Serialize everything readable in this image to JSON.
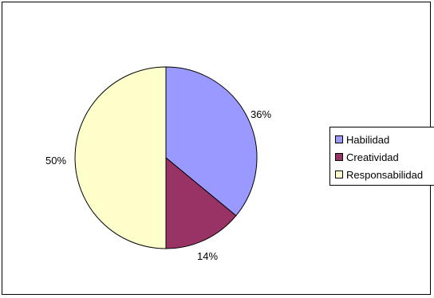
{
  "chart_data": {
    "type": "pie",
    "categories": [
      "Habilidad",
      "Creatividad",
      "Responsabilidad"
    ],
    "values": [
      36,
      14,
      50
    ],
    "data_labels": [
      "36%",
      "14%",
      "50%"
    ],
    "colors": [
      "#9999ff",
      "#993366",
      "#ffffcc"
    ],
    "legend_position": "right"
  },
  "legend": {
    "items": [
      {
        "label": "Habilidad",
        "color": "#9999ff"
      },
      {
        "label": "Creatividad",
        "color": "#993366"
      },
      {
        "label": "Responsabilidad",
        "color": "#ffffcc"
      }
    ]
  }
}
